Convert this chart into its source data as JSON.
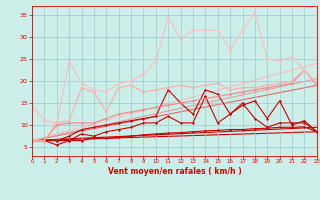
{
  "x": [
    0,
    1,
    2,
    3,
    4,
    5,
    6,
    7,
    8,
    9,
    10,
    11,
    12,
    13,
    14,
    15,
    16,
    17,
    18,
    19,
    20,
    21,
    22,
    23
  ],
  "series": [
    {
      "y": [
        6.5,
        6.5,
        6.5,
        6.5,
        6.5,
        7.0,
        7.0,
        7.2,
        7.5,
        7.8,
        8.0,
        8.2,
        8.3,
        8.5,
        8.7,
        8.8,
        9.0,
        9.0,
        9.2,
        9.3,
        9.5,
        9.5,
        9.6,
        8.5
      ],
      "color": "#cc0000",
      "lw": 0.8,
      "marker": "D",
      "ms": 1.5
    },
    {
      "y": [
        6.5,
        6.5,
        5.5,
        6.5,
        8.0,
        7.5,
        8.5,
        9.0,
        9.5,
        10.5,
        10.5,
        12.0,
        10.5,
        10.5,
        16.5,
        10.5,
        12.5,
        15.0,
        11.5,
        9.5,
        10.5,
        10.5,
        10.5,
        8.5
      ],
      "color": "#cc0000",
      "lw": 0.8,
      "marker": "D",
      "ms": 1.5
    },
    {
      "y": [
        6.5,
        6.5,
        6.5,
        7.5,
        9.0,
        9.5,
        10.0,
        10.5,
        11.0,
        11.5,
        12.0,
        18.0,
        15.0,
        12.5,
        18.0,
        17.0,
        12.5,
        14.5,
        15.5,
        11.5,
        15.5,
        10.0,
        11.0,
        8.5
      ],
      "color": "#cc0000",
      "lw": 0.8,
      "marker": "D",
      "ms": 1.5
    },
    {
      "y": [
        6.5,
        6.5,
        10.0,
        10.5,
        10.5,
        10.5,
        11.5,
        12.5,
        13.0,
        13.5,
        14.0,
        14.5,
        15.0,
        15.5,
        16.0,
        16.5,
        17.0,
        17.5,
        18.0,
        18.5,
        19.0,
        19.5,
        22.5,
        19.0
      ],
      "color": "#ee8888",
      "lw": 0.8,
      "marker": "D",
      "ms": 1.5
    },
    {
      "y": [
        6.5,
        6.5,
        10.5,
        11.0,
        18.5,
        17.5,
        13.0,
        18.5,
        19.0,
        17.5,
        18.0,
        18.5,
        19.0,
        18.5,
        19.0,
        19.5,
        18.0,
        18.5,
        18.5,
        19.0,
        19.5,
        20.0,
        22.5,
        19.5
      ],
      "color": "#ffaaaa",
      "lw": 0.8,
      "marker": "D",
      "ms": 1.5
    },
    {
      "y": [
        14.5,
        11.0,
        10.5,
        24.5,
        19.5,
        18.0,
        17.5,
        19.5,
        20.0,
        21.5,
        24.5,
        34.5,
        29.5,
        31.5,
        31.5,
        31.5,
        27.0,
        31.5,
        35.5,
        25.0,
        24.5,
        25.5,
        22.5,
        19.5
      ],
      "color": "#ffbbbb",
      "lw": 0.8,
      "marker": "D",
      "ms": 1.5
    }
  ],
  "linear_series": [
    {
      "x0": 0,
      "y0": 6.5,
      "x1": 23,
      "y1": 8.5,
      "color": "#cc0000",
      "lw": 0.8
    },
    {
      "x0": 0,
      "y0": 6.5,
      "x1": 23,
      "y1": 9.5,
      "color": "#cc0000",
      "lw": 0.8
    },
    {
      "x0": 0,
      "y0": 6.5,
      "x1": 23,
      "y1": 19.0,
      "color": "#ee6666",
      "lw": 0.8
    },
    {
      "x0": 0,
      "y0": 6.5,
      "x1": 23,
      "y1": 20.5,
      "color": "#ee9999",
      "lw": 0.8
    },
    {
      "x0": 0,
      "y0": 6.5,
      "x1": 23,
      "y1": 24.0,
      "color": "#ffbbbb",
      "lw": 0.8
    }
  ],
  "xlabel": "Vent moyen/en rafales ( km/h )",
  "xlim": [
    0,
    23
  ],
  "ylim": [
    3,
    37
  ],
  "yticks": [
    5,
    10,
    15,
    20,
    25,
    30,
    35
  ],
  "xticks": [
    0,
    1,
    2,
    3,
    4,
    5,
    6,
    7,
    8,
    9,
    10,
    11,
    12,
    13,
    14,
    15,
    16,
    17,
    18,
    19,
    20,
    21,
    22,
    23
  ],
  "bg_color": "#cceee8",
  "grid_color": "#99cccc",
  "tick_color": "#dd0000",
  "label_color": "#dd0000"
}
